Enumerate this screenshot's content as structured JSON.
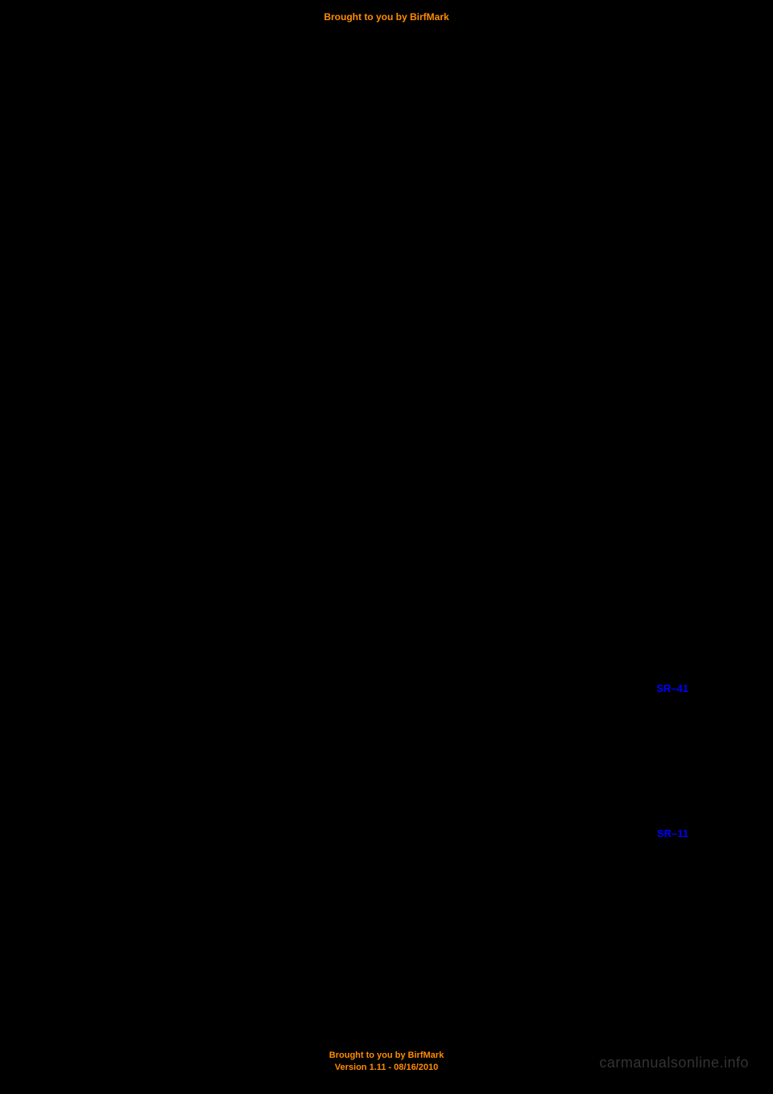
{
  "header": {
    "text": "Brought to you by BirfMark"
  },
  "references": {
    "ref1": "SR–41",
    "ref2": "SR–11"
  },
  "footer": {
    "line1": "Brought to you by BirfMark",
    "line2": "Version 1.11 - 08/16/2010"
  },
  "watermark": "carmanualsonline.info",
  "colors": {
    "background": "#000000",
    "header_color": "#ff8c00",
    "footer_color": "#ff8c00",
    "reference_color": "#0000ff",
    "watermark_color": "#666666"
  }
}
